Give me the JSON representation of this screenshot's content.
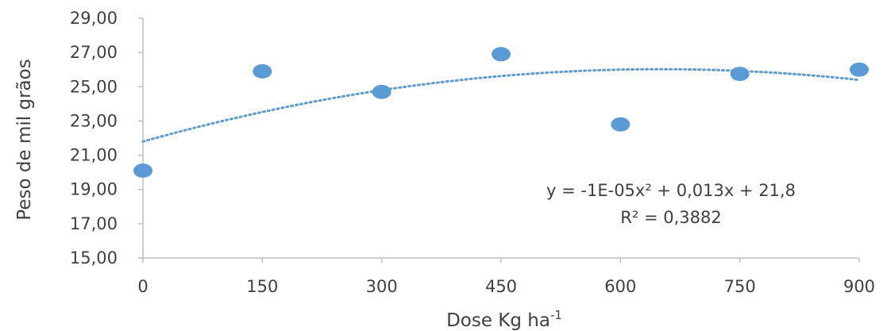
{
  "chart_data": {
    "type": "scatter",
    "x": [
      0,
      150,
      300,
      450,
      600,
      750,
      900
    ],
    "y": [
      20.1,
      25.9,
      24.7,
      26.9,
      22.8,
      25.75,
      26.0
    ],
    "x_tick_labels": [
      "0",
      "150",
      "300",
      "450",
      "600",
      "750",
      "900"
    ],
    "y_tick_labels": [
      "15,00",
      "17,00",
      "19,00",
      "21,00",
      "23,00",
      "25,00",
      "27,00",
      "29,00"
    ],
    "xlim": [
      0,
      900
    ],
    "ylim": [
      15,
      29
    ],
    "ylabel": "Peso de mil grãos",
    "xlabel_main": "Dose Kg ha",
    "xlabel_sup": "-1",
    "trendline": {
      "type": "polynomial",
      "a": -1e-05,
      "b": 0.013,
      "c": 21.8
    },
    "equation": "y = -1E-05x² + 0,013x + 21,8",
    "r_squared": "R² = 0,3882",
    "grid": false,
    "colors": {
      "marker": "#5b9bd5",
      "trend": "#5b9bd5",
      "axis": "#bfbfbf",
      "text": "#404040"
    }
  }
}
